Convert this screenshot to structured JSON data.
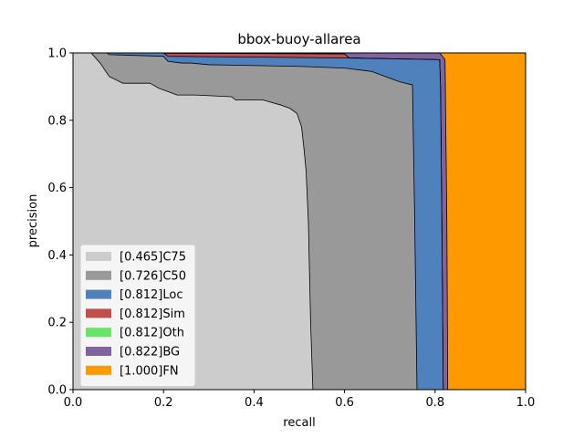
{
  "chart_data": {
    "type": "area",
    "title": "bbox-buoy-allarea",
    "xlabel": "recall",
    "ylabel": "precision",
    "xlim": [
      0.0,
      1.0
    ],
    "ylim": [
      0.0,
      1.0
    ],
    "xticks": [
      "0.0",
      "0.2",
      "0.4",
      "0.6",
      "0.8",
      "1.0"
    ],
    "yticks": [
      "0.0",
      "0.2",
      "0.4",
      "0.6",
      "0.8",
      "1.0"
    ],
    "grid": false,
    "legend_position": "lower-left",
    "series": [
      {
        "name": "[1.000]FN",
        "color": "#ff9900",
        "points": [
          [
            0,
            1.0
          ],
          [
            1.0,
            1.0
          ],
          [
            1.0,
            0.0
          ],
          [
            0,
            0.0
          ]
        ]
      },
      {
        "name": "[0.822]BG",
        "color": "#8064a2",
        "points": [
          [
            0,
            1.0
          ],
          [
            0.81,
            1.0
          ],
          [
            0.822,
            0.98
          ],
          [
            0.826,
            0.5
          ],
          [
            0.828,
            0.0
          ],
          [
            0,
            0.0
          ]
        ]
      },
      {
        "name": "[0.812]Oth",
        "color": "#66e666",
        "points": [
          [
            0,
            1.0
          ],
          [
            0.6,
            0.997
          ],
          [
            0.61,
            0.985
          ],
          [
            0.81,
            0.98
          ],
          [
            0.812,
            0.9
          ],
          [
            0.815,
            0.5
          ],
          [
            0.818,
            0.0
          ],
          [
            0,
            0.0
          ]
        ]
      },
      {
        "name": "[0.812]Sim",
        "color": "#c0504d",
        "points": [
          [
            0,
            1.0
          ],
          [
            0.6,
            0.997
          ],
          [
            0.61,
            0.985
          ],
          [
            0.81,
            0.98
          ],
          [
            0.812,
            0.9
          ],
          [
            0.815,
            0.5
          ],
          [
            0.818,
            0.0
          ],
          [
            0,
            0.0
          ]
        ]
      },
      {
        "name": "[0.812]Loc",
        "color": "#4f81bd",
        "points": [
          [
            0,
            1.0
          ],
          [
            0.2,
            1.0
          ],
          [
            0.21,
            0.99
          ],
          [
            0.61,
            0.985
          ],
          [
            0.81,
            0.98
          ],
          [
            0.812,
            0.9
          ],
          [
            0.815,
            0.5
          ],
          [
            0.818,
            0.0
          ],
          [
            0,
            0.0
          ]
        ]
      },
      {
        "name": "[0.726]C50",
        "color": "#999999",
        "points": [
          [
            0,
            1.0
          ],
          [
            0.075,
            1.0
          ],
          [
            0.08,
            0.995
          ],
          [
            0.2,
            0.99
          ],
          [
            0.21,
            0.975
          ],
          [
            0.24,
            0.97
          ],
          [
            0.26,
            0.97
          ],
          [
            0.3,
            0.965
          ],
          [
            0.5,
            0.96
          ],
          [
            0.6,
            0.955
          ],
          [
            0.66,
            0.945
          ],
          [
            0.69,
            0.93
          ],
          [
            0.72,
            0.915
          ],
          [
            0.75,
            0.905
          ],
          [
            0.755,
            0.5
          ],
          [
            0.76,
            0.0
          ],
          [
            0,
            0.0
          ]
        ]
      },
      {
        "name": "[0.465]C75",
        "color": "#cccccc",
        "points": [
          [
            0,
            1.0
          ],
          [
            0.04,
            1.0
          ],
          [
            0.06,
            0.97
          ],
          [
            0.08,
            0.93
          ],
          [
            0.11,
            0.91
          ],
          [
            0.17,
            0.91
          ],
          [
            0.19,
            0.895
          ],
          [
            0.23,
            0.875
          ],
          [
            0.27,
            0.875
          ],
          [
            0.35,
            0.87
          ],
          [
            0.36,
            0.86
          ],
          [
            0.42,
            0.86
          ],
          [
            0.46,
            0.845
          ],
          [
            0.48,
            0.835
          ],
          [
            0.495,
            0.82
          ],
          [
            0.505,
            0.78
          ],
          [
            0.51,
            0.72
          ],
          [
            0.515,
            0.65
          ],
          [
            0.52,
            0.5
          ],
          [
            0.525,
            0.2
          ],
          [
            0.53,
            0.0
          ],
          [
            0,
            0.0
          ]
        ]
      }
    ]
  }
}
